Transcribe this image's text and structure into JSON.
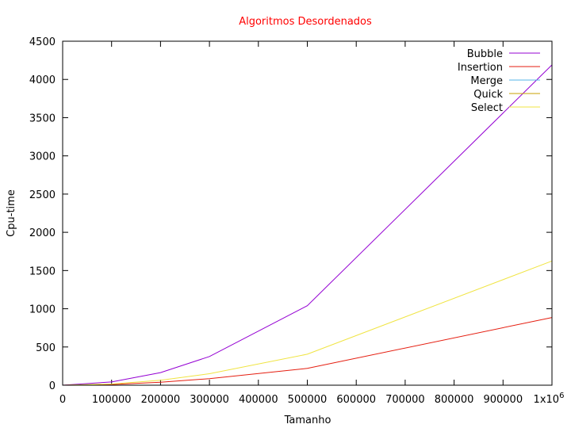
{
  "chart_data": {
    "type": "line",
    "title": "Algoritmos Desordenados",
    "xlabel": "Tamanho",
    "ylabel": "Cpu-time",
    "xlim": [
      0,
      1000000
    ],
    "ylim": [
      0,
      4500
    ],
    "grid": false,
    "legend_position": "top-right",
    "x_ticks": [
      0,
      100000,
      200000,
      300000,
      400000,
      500000,
      600000,
      700000,
      800000,
      900000,
      1000000
    ],
    "x_tick_labels": [
      "0",
      "100000",
      "200000",
      "300000",
      "400000",
      "500000",
      "600000",
      "700000",
      "800000",
      "900000",
      "1x10"
    ],
    "x_tick_last_exponent": "6",
    "y_ticks": [
      0,
      500,
      1000,
      1500,
      2000,
      2500,
      3000,
      3500,
      4000,
      4500
    ],
    "y_tick_labels": [
      "0",
      "500",
      "1000",
      "1500",
      "2000",
      "2500",
      "3000",
      "3500",
      "4000",
      "4500"
    ],
    "x": [
      0,
      100000,
      200000,
      300000,
      500000,
      1000000
    ],
    "series": [
      {
        "name": "Bubble",
        "color": "#9400d3",
        "values": [
          0,
          42,
          165,
          375,
          1040,
          4190
        ]
      },
      {
        "name": "Insertion",
        "color": "#e51e10",
        "values": [
          0,
          9,
          38,
          86,
          220,
          885
        ]
      },
      {
        "name": "Merge",
        "color": "#56b4e9",
        "values": [
          0,
          0,
          0,
          0,
          0,
          0
        ]
      },
      {
        "name": "Quick",
        "color": "#c8a000",
        "values": [
          0,
          0,
          0,
          0,
          0,
          0
        ]
      },
      {
        "name": "Select",
        "color": "#f0e442",
        "values": [
          0,
          16,
          65,
          150,
          405,
          1625
        ]
      }
    ]
  }
}
